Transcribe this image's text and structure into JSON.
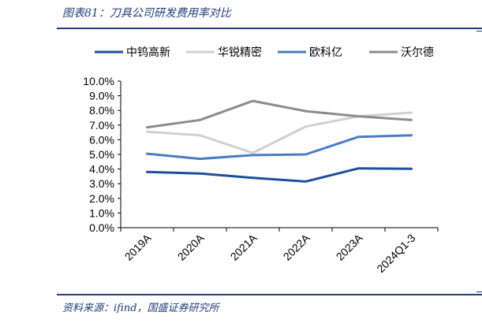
{
  "figure": {
    "title": "图表81：刀具公司研发费用率对比",
    "source": "资料来源：ifind，国盛证券研究所"
  },
  "colors": {
    "frame": "#1f3d7a",
    "axis": "#000000"
  },
  "chart_data": {
    "type": "line",
    "title": "",
    "xlabel": "",
    "ylabel": "",
    "categories": [
      "2019A",
      "2020A",
      "2021A",
      "2022A",
      "2023A",
      "2024Q1-3"
    ],
    "ylim": [
      0,
      10
    ],
    "yticks": [
      "0.0%",
      "1.0%",
      "2.0%",
      "3.0%",
      "4.0%",
      "5.0%",
      "6.0%",
      "7.0%",
      "8.0%",
      "9.0%",
      "10.0%"
    ],
    "grid": false,
    "legend_position": "top",
    "series": [
      {
        "name": "中钨高新",
        "color": "#1f4e9c",
        "values": [
          3.8,
          3.7,
          3.4,
          3.15,
          4.05,
          4.02
        ]
      },
      {
        "name": "华锐精密",
        "color": "#d0d0d0",
        "values": [
          6.55,
          6.3,
          5.1,
          6.9,
          7.6,
          7.85
        ]
      },
      {
        "name": "欧科亿",
        "color": "#4a7cc4",
        "values": [
          5.05,
          4.7,
          4.95,
          5.0,
          6.2,
          6.3
        ]
      },
      {
        "name": "沃尔德",
        "color": "#8c8c8c",
        "values": [
          6.85,
          7.35,
          8.65,
          7.95,
          7.6,
          7.35
        ]
      }
    ]
  }
}
